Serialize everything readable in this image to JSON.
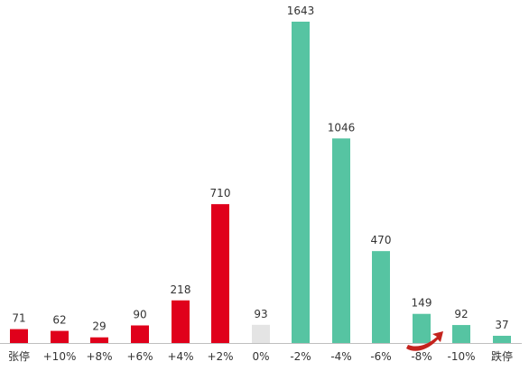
{
  "chart_data": {
    "type": "bar",
    "title": "",
    "xlabel": "",
    "ylabel": "",
    "categories": [
      "张停",
      "+10%",
      "+8%",
      "+6%",
      "+4%",
      "+2%",
      "0%",
      "-2%",
      "-4%",
      "-6%",
      "-8%",
      "-10%",
      "跌停"
    ],
    "values": [
      71,
      62,
      29,
      90,
      218,
      710,
      93,
      1643,
      1046,
      470,
      149,
      92,
      37
    ],
    "bar_colors": [
      "#e0001b",
      "#e0001b",
      "#e0001b",
      "#e0001b",
      "#e0001b",
      "#e0001b",
      "#e4e4e4",
      "#56c4a2",
      "#56c4a2",
      "#56c4a2",
      "#56c4a2",
      "#56c4a2",
      "#56c4a2"
    ],
    "ylim": [
      0,
      1643
    ],
    "grid": false,
    "axis_line_color": "#bfbfbf"
  }
}
